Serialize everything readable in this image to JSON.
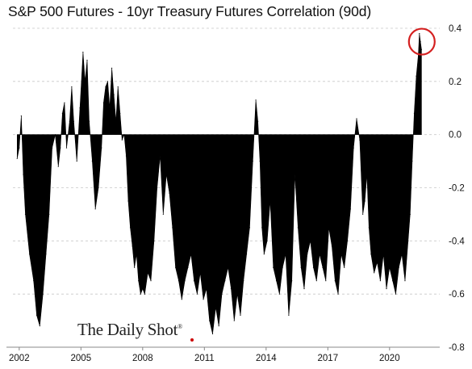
{
  "chart_data": {
    "type": "area",
    "title": "S&P 500 Futures - 10yr Treasury Futures Correlation (90d)",
    "xlabel": "",
    "ylabel": "",
    "xlim": [
      2001.85,
      2021.85
    ],
    "ylim": [
      -0.8,
      0.4
    ],
    "x_ticks": [
      "2002",
      "2005",
      "2008",
      "2011",
      "2014",
      "2017",
      "2020"
    ],
    "y_ticks": [
      "0.4",
      "0.2",
      "0.0",
      "-0.2",
      "-0.4",
      "-0.6",
      "-0.8"
    ],
    "y_tick_values": [
      0.4,
      0.2,
      0.0,
      -0.2,
      -0.4,
      -0.6,
      -0.8
    ],
    "y_axis_side": "right",
    "grid": "horizontal dashed",
    "annotation": "red circle around latest value",
    "watermark": "The Daily Shot",
    "watermark_mark": "®",
    "series": [
      {
        "values_note": "90-day rolling correlation, approximate",
        "x": [
          2001.9,
          2002.0,
          2002.1,
          2002.2,
          2002.3,
          2002.5,
          2002.7,
          2002.85,
          2003.0,
          2003.15,
          2003.3,
          2003.45,
          2003.6,
          2003.75,
          2003.9,
          2004.0,
          2004.1,
          2004.2,
          2004.3,
          2004.45,
          2004.55,
          2004.65,
          2004.8,
          2004.95,
          2005.1,
          2005.2,
          2005.3,
          2005.4,
          2005.55,
          2005.7,
          2005.85,
          2006.0,
          2006.1,
          2006.2,
          2006.3,
          2006.4,
          2006.5,
          2006.6,
          2006.7,
          2006.8,
          2006.9,
          2007.0,
          2007.1,
          2007.2,
          2007.3,
          2007.4,
          2007.5,
          2007.6,
          2007.7,
          2007.8,
          2007.9,
          2008.0,
          2008.1,
          2008.25,
          2008.4,
          2008.55,
          2008.7,
          2008.85,
          2009.0,
          2009.15,
          2009.3,
          2009.45,
          2009.6,
          2009.75,
          2009.9,
          2010.05,
          2010.2,
          2010.35,
          2010.5,
          2010.65,
          2010.8,
          2010.95,
          2011.1,
          2011.25,
          2011.4,
          2011.55,
          2011.7,
          2011.85,
          2012.0,
          2012.15,
          2012.3,
          2012.45,
          2012.6,
          2012.75,
          2012.9,
          2013.05,
          2013.2,
          2013.35,
          2013.5,
          2013.6,
          2013.7,
          2013.8,
          2013.9,
          2014.05,
          2014.2,
          2014.35,
          2014.5,
          2014.65,
          2014.8,
          2014.95,
          2015.1,
          2015.25,
          2015.4,
          2015.55,
          2015.7,
          2015.85,
          2016.0,
          2016.15,
          2016.3,
          2016.45,
          2016.6,
          2016.75,
          2016.9,
          2017.05,
          2017.2,
          2017.35,
          2017.5,
          2017.65,
          2017.8,
          2017.95,
          2018.1,
          2018.25,
          2018.4,
          2018.55,
          2018.7,
          2018.8,
          2018.9,
          2019.0,
          2019.1,
          2019.25,
          2019.4,
          2019.55,
          2019.7,
          2019.85,
          2020.0,
          2020.15,
          2020.3,
          2020.45,
          2020.6,
          2020.75,
          2020.9,
          2021.0,
          2021.1,
          2021.2,
          2021.3,
          2021.4,
          2021.45,
          2021.5,
          2021.55
        ],
        "y": [
          -0.09,
          -0.05,
          0.07,
          -0.15,
          -0.3,
          -0.45,
          -0.55,
          -0.68,
          -0.72,
          -0.6,
          -0.45,
          -0.3,
          -0.05,
          0.0,
          -0.12,
          -0.05,
          0.08,
          0.12,
          -0.05,
          0.05,
          0.18,
          0.05,
          -0.1,
          0.1,
          0.31,
          0.2,
          0.28,
          0.05,
          -0.1,
          -0.28,
          -0.2,
          -0.05,
          0.12,
          0.18,
          0.2,
          0.1,
          0.25,
          0.15,
          0.05,
          0.18,
          0.08,
          -0.02,
          0.0,
          -0.08,
          -0.25,
          -0.35,
          -0.42,
          -0.5,
          -0.45,
          -0.55,
          -0.6,
          -0.58,
          -0.6,
          -0.52,
          -0.55,
          -0.4,
          -0.2,
          -0.08,
          -0.3,
          -0.15,
          -0.22,
          -0.35,
          -0.5,
          -0.55,
          -0.62,
          -0.55,
          -0.5,
          -0.45,
          -0.55,
          -0.6,
          -0.52,
          -0.62,
          -0.58,
          -0.7,
          -0.75,
          -0.65,
          -0.72,
          -0.6,
          -0.55,
          -0.5,
          -0.58,
          -0.7,
          -0.6,
          -0.68,
          -0.55,
          -0.45,
          -0.35,
          -0.1,
          0.13,
          0.05,
          -0.1,
          -0.35,
          -0.45,
          -0.4,
          -0.25,
          -0.5,
          -0.55,
          -0.6,
          -0.5,
          -0.45,
          -0.68,
          -0.55,
          -0.15,
          -0.35,
          -0.5,
          -0.58,
          -0.45,
          -0.4,
          -0.5,
          -0.55,
          -0.45,
          -0.5,
          -0.55,
          -0.35,
          -0.42,
          -0.55,
          -0.6,
          -0.45,
          -0.5,
          -0.4,
          -0.28,
          -0.05,
          0.06,
          -0.02,
          -0.3,
          -0.25,
          -0.15,
          -0.35,
          -0.45,
          -0.52,
          -0.48,
          -0.55,
          -0.45,
          -0.58,
          -0.5,
          -0.55,
          -0.6,
          -0.5,
          -0.45,
          -0.55,
          -0.4,
          -0.3,
          -0.1,
          0.08,
          0.22,
          0.3,
          0.38,
          0.35,
          0.32
        ]
      }
    ]
  }
}
